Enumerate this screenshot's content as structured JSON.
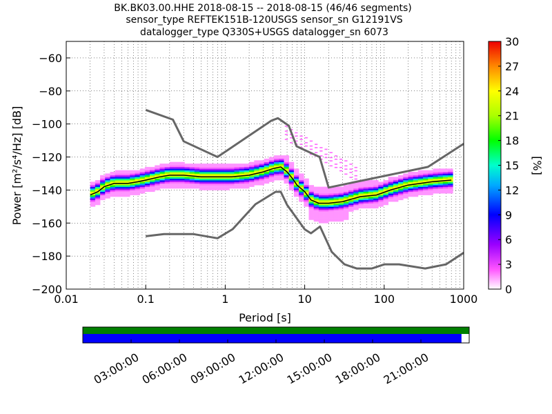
{
  "title": {
    "line1": "BK.BK03.00.HHE   2018-08-15 -- 2018-08-15  (46/46 segments)",
    "line2": "sensor_type REFTEK151B-120USGS sensor_sn G12191VS",
    "line3": "datalogger_type Q330S+USGS datalogger_sn 6073"
  },
  "chart_data": {
    "type": "heatmap",
    "xlabel": "Period [s]",
    "ylabel": "Power [m²/s⁴/Hz] [dB]",
    "x_scale": "log",
    "xlim": [
      0.01,
      1000
    ],
    "ylim": [
      -200,
      -50
    ],
    "x_ticks": [
      0.01,
      0.1,
      1,
      10,
      100,
      1000
    ],
    "x_tick_labels": [
      "0.01",
      "0.1",
      "1",
      "10",
      "100",
      "1000"
    ],
    "y_ticks": [
      -200,
      -180,
      -160,
      -140,
      -120,
      -100,
      -80,
      -60
    ],
    "y_tick_labels": [
      "−200",
      "−180",
      "−160",
      "−140",
      "−120",
      "−100",
      "−80",
      "−60"
    ],
    "grid": true,
    "colorbar": {
      "label": "[%]",
      "range": [
        0,
        30
      ],
      "ticks": [
        0,
        3,
        6,
        9,
        12,
        15,
        18,
        21,
        24,
        27,
        30
      ],
      "tick_labels": [
        "0",
        "3",
        "6",
        "9",
        "12",
        "15",
        "18",
        "21",
        "24",
        "27",
        "30"
      ]
    },
    "noise_model_high": {
      "x": [
        0.1,
        0.22,
        0.3,
        0.8,
        3.8,
        4.6,
        6.3,
        7.9,
        15.4,
        20,
        354.8,
        1000
      ],
      "y": [
        -91.5,
        -97.4,
        -110.5,
        -120,
        -98,
        -96.5,
        -101,
        -113.5,
        -120,
        -138.5,
        -126,
        -112
      ]
    },
    "noise_model_low": {
      "x": [
        0.1,
        0.17,
        0.4,
        0.8,
        1.24,
        2.4,
        4.3,
        5,
        6,
        10,
        12,
        15.6,
        21.9,
        31.6,
        45,
        70,
        101,
        154,
        328,
        600,
        1000
      ],
      "y": [
        -168,
        -166.7,
        -166.7,
        -169.2,
        -163.7,
        -148.6,
        -141.1,
        -141.1,
        -149,
        -163.8,
        -166.2,
        -162.1,
        -177.5,
        -185,
        -187.5,
        -187.5,
        -185,
        -185,
        -187.5,
        -185,
        -178
      ]
    },
    "mode_curve": {
      "x": [
        0.02,
        0.025,
        0.03,
        0.04,
        0.06,
        0.08,
        0.1,
        0.15,
        0.2,
        0.3,
        0.5,
        0.8,
        1.2,
        2,
        3,
        4,
        5,
        6,
        7,
        8,
        10,
        12,
        15,
        20,
        30,
        50,
        80,
        120,
        200,
        400,
        700
      ],
      "y": [
        -143,
        -141,
        -138,
        -136,
        -136,
        -135,
        -134,
        -132,
        -131,
        -131,
        -132,
        -132,
        -132,
        -131,
        -129,
        -127,
        -126,
        -129,
        -133,
        -137,
        -141,
        -146,
        -148,
        -148,
        -147,
        -144,
        -143,
        -140,
        -137,
        -135,
        -134
      ]
    },
    "time_axis": {
      "labels": [
        "03:00:00",
        "06:00:00",
        "09:00:00",
        "12:00:00",
        "15:00:00",
        "18:00:00",
        "21:00:00"
      ],
      "hours": [
        3,
        6,
        9,
        12,
        15,
        18,
        21
      ],
      "range_hours": [
        0,
        24
      ],
      "top_bar_fill_fraction": 1.0,
      "bottom_bar_fill_fraction": 0.98,
      "top_bar_color": "#008000",
      "bottom_bar_color": "#0000ff"
    }
  }
}
